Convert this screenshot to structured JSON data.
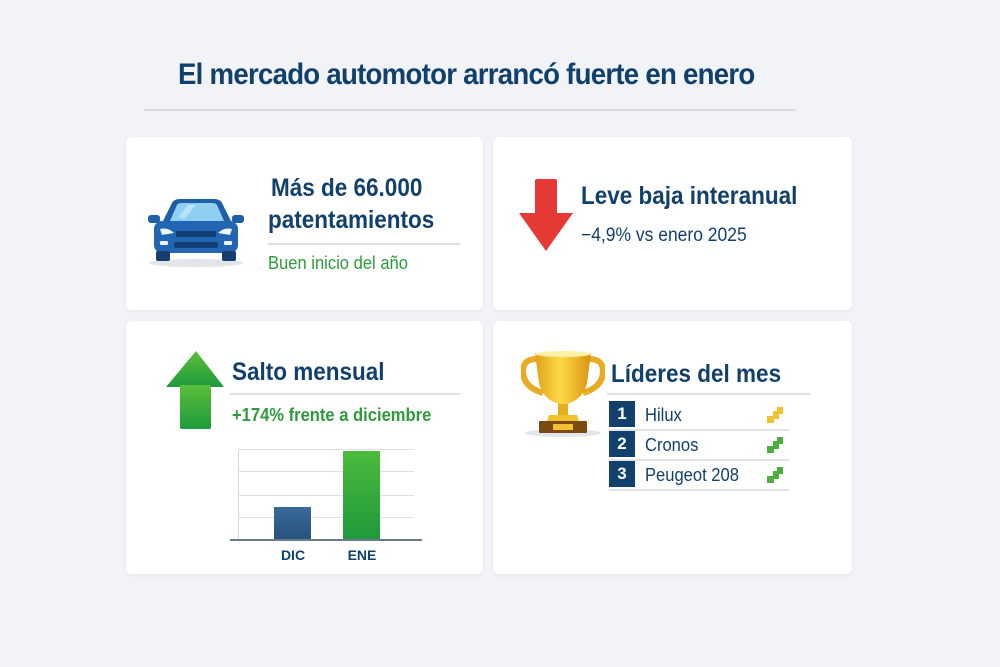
{
  "header": {
    "title": "El mercado automotor arrancó fuerte en enero"
  },
  "cards": {
    "volume": {
      "icon": "car-icon",
      "headline_line1": "Más de 66.000",
      "headline_line2": "patentamientos",
      "subtext": "Buen inicio del año"
    },
    "yoy": {
      "icon": "arrow-down-icon",
      "headline": "Leve baja interanual",
      "subtext": "−4,9% vs enero 2025"
    },
    "mom": {
      "icon": "arrow-up-icon",
      "headline": "Salto mensual",
      "subtext": "+174% frente a diciembre"
    },
    "leaders": {
      "icon": "trophy-icon",
      "headline": "Líderes del mes",
      "items": [
        {
          "rank": "1",
          "model": "Hilux",
          "trend_icon": "trend-up-icon",
          "trend_color": "#f2c12e"
        },
        {
          "rank": "2",
          "model": "Cronos",
          "trend_icon": "trend-up-icon",
          "trend_color": "#4caf3c"
        },
        {
          "rank": "3",
          "model": "Peugeot 208",
          "trend_icon": "trend-up-icon",
          "trend_color": "#4caf3c"
        }
      ]
    }
  },
  "colors": {
    "navy": "#11406d",
    "green": "#2e9b3a",
    "red": "#e53935",
    "gold": "#f2c12e"
  },
  "chart_data": {
    "type": "bar",
    "title": "",
    "categories": [
      "DIC",
      "ENE"
    ],
    "values": [
      36.5,
      100
    ],
    "value_note": "relative heights; ENE ≈ 2.74× DIC (+174%)",
    "colors": [
      "#2f5d8a",
      "#35a93e"
    ],
    "xlabel": "",
    "ylabel": "",
    "grid": true,
    "ylim": [
      0,
      100
    ]
  }
}
